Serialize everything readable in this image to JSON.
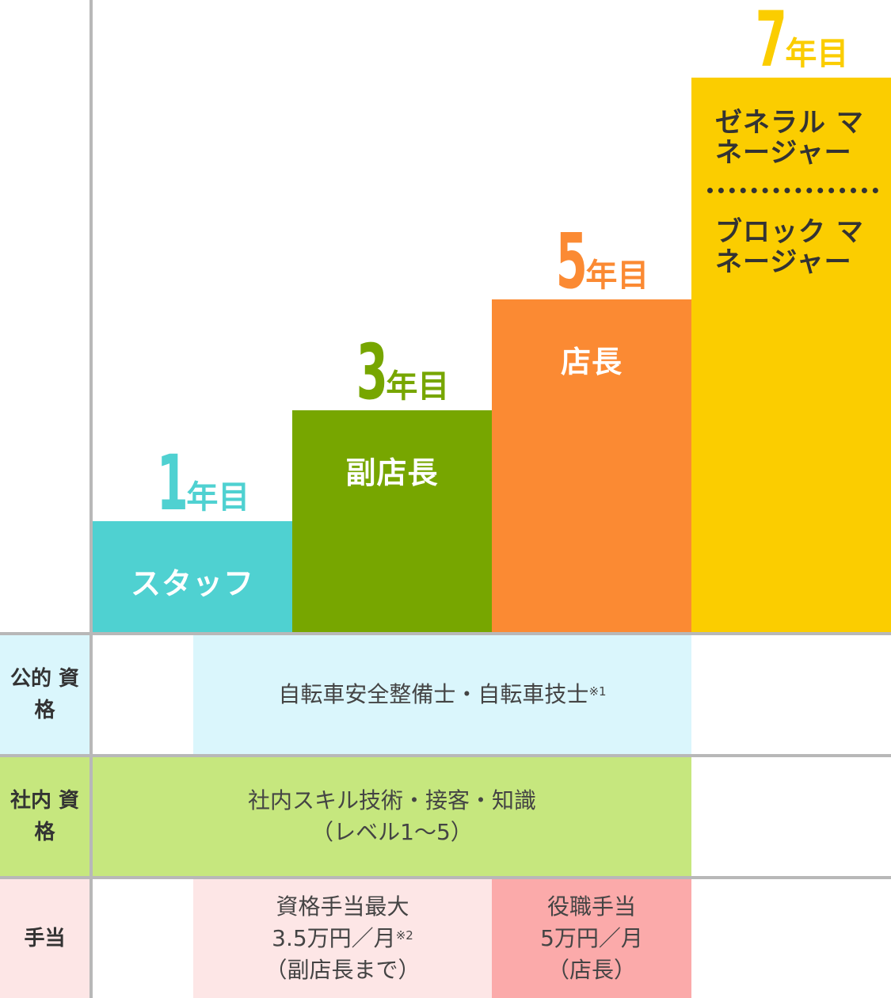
{
  "steps": [
    {
      "year_num": "1",
      "year_suffix": "年目",
      "label": "スタッフ",
      "color": "#4fd1d1"
    },
    {
      "year_num": "3",
      "year_suffix": "年目",
      "label": "副店長",
      "color": "#77a600"
    },
    {
      "year_num": "5",
      "year_suffix": "年目",
      "label": "店長",
      "color": "#fb8a33"
    },
    {
      "year_num": "7",
      "year_suffix": "年目",
      "label_1": "ゼネラル",
      "label_2": "マネージャー",
      "label_3": "ブロック",
      "label_4": "マネージャー",
      "color": "#fbcd00"
    }
  ],
  "table": {
    "public_cert": {
      "header_1": "公的",
      "header_2": "資格",
      "text": "自転車安全整備士・自転車技士",
      "note": "※1",
      "color": "#daf6fc"
    },
    "internal_cert": {
      "header_1": "社内",
      "header_2": "資格",
      "line_1": "社内スキル技術・接客・知識",
      "line_2": "（レベル1～5）",
      "color": "#c6e77e"
    },
    "allowance": {
      "header": "手当",
      "cert_line_1": "資格手当最大",
      "cert_line_2": "3.5万円／月",
      "cert_note": "※2",
      "cert_line_3": "（副店長まで）",
      "cert_color": "#fde6e6",
      "role_line_1": "役職手当",
      "role_line_2": "5万円／月",
      "role_line_3": "（店長）",
      "role_color": "#fbaaaa"
    },
    "header_color": "#daf6fc"
  }
}
